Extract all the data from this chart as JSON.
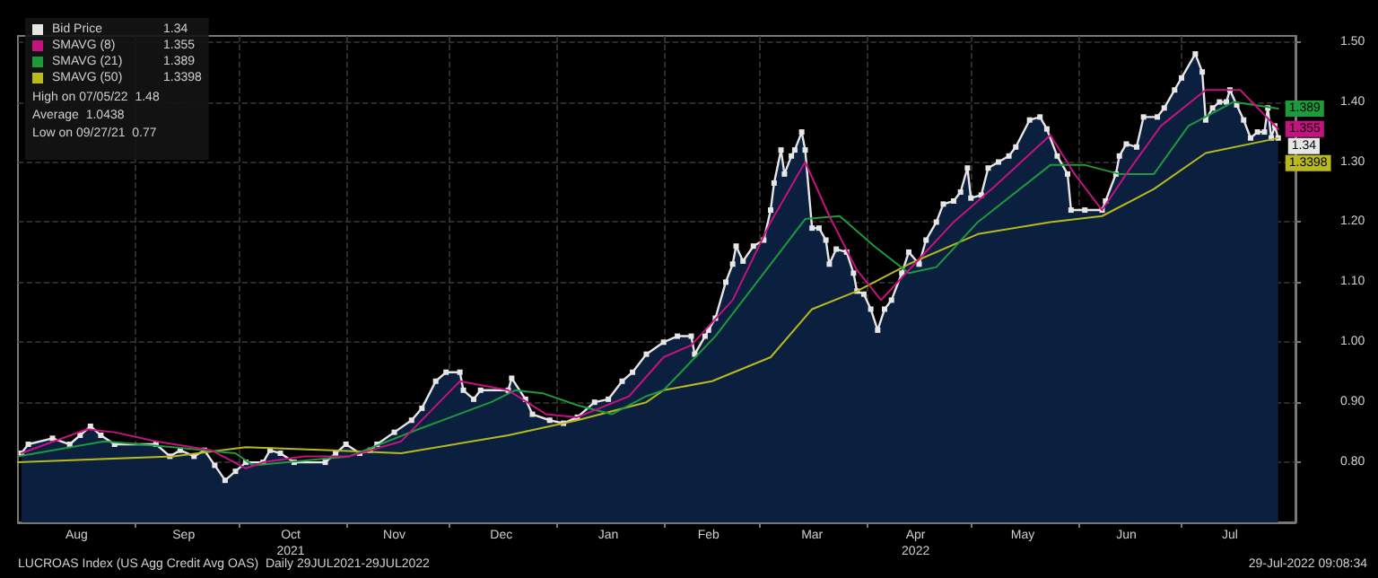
{
  "chart_data": {
    "type": "line",
    "grid": true,
    "legend": "top left",
    "xlim": [
      "2021-07-29",
      "2022-08-03"
    ],
    "xticks": [
      {
        "value": "2021-08-15",
        "label": "Aug"
      },
      {
        "value": "2021-09-01",
        "label": null
      },
      {
        "value": "2021-09-15",
        "label": "Sep"
      },
      {
        "value": "2021-10-01",
        "label": null
      },
      {
        "value": "2021-10-16",
        "label": "Oct\n2021"
      },
      {
        "value": "2021-11-01",
        "label": null
      },
      {
        "value": "2021-11-15",
        "label": "Nov"
      },
      {
        "value": "2021-12-01",
        "label": null
      },
      {
        "value": "2021-12-16",
        "label": "Dec"
      },
      {
        "value": "2022-01-01",
        "label": null
      },
      {
        "value": "2022-01-16",
        "label": "Jan"
      },
      {
        "value": "2022-02-01",
        "label": null
      },
      {
        "value": "2022-02-14",
        "label": "Feb"
      },
      {
        "value": "2022-03-01",
        "label": null
      },
      {
        "value": "2022-03-16",
        "label": "Mar"
      },
      {
        "value": "2022-04-01",
        "label": null
      },
      {
        "value": "2022-04-15",
        "label": "Apr\n2022"
      },
      {
        "value": "2022-05-01",
        "label": null
      },
      {
        "value": "2022-05-16",
        "label": "May"
      },
      {
        "value": "2022-06-01",
        "label": null
      },
      {
        "value": "2022-06-15",
        "label": "Jun"
      },
      {
        "value": "2022-07-01",
        "label": null
      },
      {
        "value": "2022-07-15",
        "label": "Jul"
      }
    ],
    "ylim": [
      0.7,
      1.51
    ],
    "yticks": [
      {
        "value": 0.8,
        "label": "0.80"
      },
      {
        "value": 0.9,
        "label": "0.90"
      },
      {
        "value": 1.0,
        "label": "1.00"
      },
      {
        "value": 1.1,
        "label": "1.10"
      },
      {
        "value": 1.2,
        "label": "1.20"
      },
      {
        "value": 1.3,
        "label": "1.30"
      },
      {
        "value": 1.4,
        "label": "1.40"
      },
      {
        "value": 1.5,
        "label": "1.50"
      }
    ],
    "annotations": [
      "High on 07/05/22  1.48",
      "Average  1.0438",
      "Low on 09/27/21  0.77",
      "LUCROAS Index (US Agg Credit Avg OAS)  Daily 29JUL2021-29JUL2022",
      "29-Jul-2022 09:08:34",
      {
        "text": "1.34",
        "x": "2022-07-29",
        "y": 1.34
      },
      {
        "text": "1.355",
        "x": "2022-07-29",
        "y": 1.355
      },
      {
        "text": "1.389",
        "x": "2022-07-29",
        "y": 1.389
      },
      {
        "text": "1.3398",
        "x": "2022-07-29",
        "y": 1.3398
      }
    ],
    "series": [
      {
        "name": "Bid Price",
        "type": "area",
        "color": "#e6e6e6",
        "marker": "square",
        "x": [
          "2021-07-30",
          "2021-08-01",
          "2021-08-08",
          "2021-08-13",
          "2021-08-16",
          "2021-08-19",
          "2021-08-22",
          "2021-08-26",
          "2021-09-07",
          "2021-09-11",
          "2021-09-14",
          "2021-09-18",
          "2021-09-21",
          "2021-09-24",
          "2021-09-27",
          "2021-09-30",
          "2021-10-03",
          "2021-10-08",
          "2021-10-10",
          "2021-10-13",
          "2021-10-17",
          "2021-10-26",
          "2021-10-29",
          "2021-11-01",
          "2021-11-05",
          "2021-11-08",
          "2021-11-10",
          "2021-11-15",
          "2021-11-20",
          "2021-11-23",
          "2021-11-27",
          "2021-11-30",
          "2021-12-04",
          "2021-12-05",
          "2021-12-08",
          "2021-12-10",
          "2021-12-18",
          "2021-12-19",
          "2021-12-23",
          "2021-12-25",
          "2021-12-30",
          "2022-01-03",
          "2022-01-07",
          "2022-01-12",
          "2022-01-16",
          "2022-01-20",
          "2022-01-23",
          "2022-01-27",
          "2022-02-01",
          "2022-02-05",
          "2022-02-09",
          "2022-02-10",
          "2022-02-13",
          "2022-02-14",
          "2022-02-16",
          "2022-02-19",
          "2022-02-21",
          "2022-02-22",
          "2022-02-24",
          "2022-02-27",
          "2022-03-02",
          "2022-03-04",
          "2022-03-05",
          "2022-03-07",
          "2022-03-08",
          "2022-03-10",
          "2022-03-11",
          "2022-03-13",
          "2022-03-14",
          "2022-03-16",
          "2022-03-18",
          "2022-03-20",
          "2022-03-21",
          "2022-03-23",
          "2022-03-26",
          "2022-03-28",
          "2022-03-29",
          "2022-03-31",
          "2022-04-02",
          "2022-04-04",
          "2022-04-06",
          "2022-04-08",
          "2022-04-11",
          "2022-04-13",
          "2022-04-16",
          "2022-04-18",
          "2022-04-21",
          "2022-04-23",
          "2022-04-26",
          "2022-04-28",
          "2022-04-30",
          "2022-05-01",
          "2022-05-04",
          "2022-05-06",
          "2022-05-09",
          "2022-05-12",
          "2022-05-14",
          "2022-05-18",
          "2022-05-21",
          "2022-05-23",
          "2022-05-26",
          "2022-05-29",
          "2022-05-30",
          "2022-06-03",
          "2022-06-08",
          "2022-06-09",
          "2022-06-12",
          "2022-06-13",
          "2022-06-15",
          "2022-06-18",
          "2022-06-20",
          "2022-06-24",
          "2022-06-26",
          "2022-06-29",
          "2022-07-01",
          "2022-07-05",
          "2022-07-07",
          "2022-07-08",
          "2022-07-10",
          "2022-07-12",
          "2022-07-14",
          "2022-07-15",
          "2022-07-17",
          "2022-07-19",
          "2022-07-21",
          "2022-07-23",
          "2022-07-25",
          "2022-07-26",
          "2022-07-27",
          "2022-07-28",
          "2022-07-29"
        ],
        "values": [
          0.815,
          0.83,
          0.84,
          0.83,
          0.845,
          0.86,
          0.845,
          0.83,
          0.83,
          0.81,
          0.82,
          0.81,
          0.82,
          0.795,
          0.77,
          0.785,
          0.8,
          0.8,
          0.82,
          0.815,
          0.8,
          0.8,
          0.815,
          0.83,
          0.815,
          0.82,
          0.83,
          0.85,
          0.87,
          0.89,
          0.935,
          0.95,
          0.95,
          0.92,
          0.905,
          0.92,
          0.92,
          0.94,
          0.905,
          0.88,
          0.87,
          0.865,
          0.875,
          0.9,
          0.905,
          0.935,
          0.95,
          0.98,
          1.0,
          1.01,
          1.01,
          0.98,
          1.01,
          1.02,
          1.04,
          1.1,
          1.13,
          1.16,
          1.135,
          1.16,
          1.17,
          1.22,
          1.265,
          1.32,
          1.28,
          1.31,
          1.32,
          1.35,
          1.32,
          1.19,
          1.19,
          1.17,
          1.13,
          1.155,
          1.15,
          1.115,
          1.085,
          1.08,
          1.055,
          1.02,
          1.055,
          1.07,
          1.115,
          1.15,
          1.13,
          1.17,
          1.2,
          1.23,
          1.235,
          1.25,
          1.29,
          1.24,
          1.245,
          1.29,
          1.3,
          1.31,
          1.325,
          1.37,
          1.375,
          1.355,
          1.31,
          1.28,
          1.22,
          1.22,
          1.22,
          1.235,
          1.28,
          1.31,
          1.33,
          1.325,
          1.375,
          1.375,
          1.39,
          1.42,
          1.44,
          1.48,
          1.45,
          1.37,
          1.39,
          1.4,
          1.4,
          1.42,
          1.395,
          1.37,
          1.34,
          1.35,
          1.35,
          1.39,
          1.34,
          1.36,
          1.34
        ]
      },
      {
        "name": "SMAVG (8)",
        "color": "#c4137f",
        "x": [
          "2021-07-30",
          "2021-08-18",
          "2021-08-26",
          "2021-09-07",
          "2021-09-23",
          "2021-10-03",
          "2021-10-08",
          "2021-10-20",
          "2021-11-02",
          "2021-11-17",
          "2021-12-04",
          "2021-12-18",
          "2021-12-29",
          "2022-01-07",
          "2022-01-22",
          "2022-02-01",
          "2022-02-09",
          "2022-02-21",
          "2022-03-04",
          "2022-03-14",
          "2022-03-21",
          "2022-03-29",
          "2022-04-05",
          "2022-04-13",
          "2022-04-26",
          "2022-05-08",
          "2022-05-24",
          "2022-05-31",
          "2022-06-08",
          "2022-06-15",
          "2022-06-25",
          "2022-07-08",
          "2022-07-18",
          "2022-07-29"
        ],
        "values": [
          0.815,
          0.855,
          0.85,
          0.835,
          0.82,
          0.79,
          0.8,
          0.81,
          0.81,
          0.835,
          0.935,
          0.92,
          0.88,
          0.875,
          0.91,
          0.975,
          0.995,
          1.07,
          1.2,
          1.3,
          1.21,
          1.12,
          1.07,
          1.12,
          1.2,
          1.26,
          1.345,
          1.28,
          1.22,
          1.28,
          1.36,
          1.42,
          1.42,
          1.355
        ]
      },
      {
        "name": "SMAVG (21)",
        "color": "#1d9a3c",
        "x": [
          "2021-07-29",
          "2021-08-23",
          "2021-09-12",
          "2021-09-30",
          "2021-10-05",
          "2021-10-15",
          "2021-11-02",
          "2021-11-22",
          "2021-12-13",
          "2021-12-20",
          "2021-12-28",
          "2022-01-07",
          "2022-01-17",
          "2022-01-27",
          "2022-02-01",
          "2022-02-16",
          "2022-03-04",
          "2022-03-14",
          "2022-03-24",
          "2022-04-03",
          "2022-04-13",
          "2022-04-21",
          "2022-05-03",
          "2022-05-24",
          "2022-06-03",
          "2022-06-13",
          "2022-06-23",
          "2022-07-03",
          "2022-07-16",
          "2022-07-29"
        ],
        "values": [
          0.81,
          0.835,
          0.825,
          0.815,
          0.795,
          0.8,
          0.81,
          0.855,
          0.9,
          0.92,
          0.915,
          0.895,
          0.88,
          0.91,
          0.92,
          1.01,
          1.13,
          1.205,
          1.21,
          1.16,
          1.115,
          1.125,
          1.2,
          1.295,
          1.295,
          1.28,
          1.28,
          1.36,
          1.4,
          1.389
        ]
      },
      {
        "name": "SMAVG (50)",
        "color": "#b9b91e",
        "x": [
          "2021-07-29",
          "2021-09-12",
          "2021-10-03",
          "2021-10-28",
          "2021-11-17",
          "2021-12-18",
          "2022-01-07",
          "2022-01-27",
          "2022-02-01",
          "2022-02-15",
          "2022-03-04",
          "2022-03-16",
          "2022-03-29",
          "2022-04-13",
          "2022-05-03",
          "2022-05-24",
          "2022-06-08",
          "2022-06-23",
          "2022-07-08",
          "2022-07-29"
        ],
        "values": [
          0.8,
          0.81,
          0.825,
          0.82,
          0.815,
          0.845,
          0.87,
          0.9,
          0.92,
          0.935,
          0.975,
          1.055,
          1.085,
          1.13,
          1.18,
          1.2,
          1.21,
          1.255,
          1.315,
          1.3398
        ]
      }
    ]
  }
}
